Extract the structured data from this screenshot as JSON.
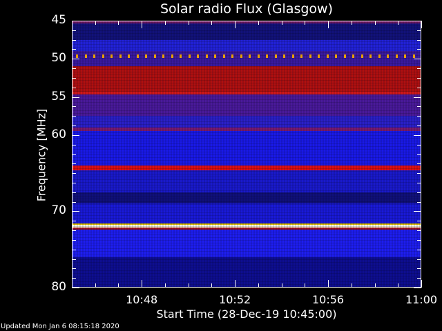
{
  "chart_data": {
    "type": "heatmap",
    "title": "Solar radio Flux (Glasgow)",
    "xlabel": "Start Time (28-Dec-19 10:45:00)",
    "ylabel": "Frequency [MHz]",
    "x_range": [
      "10:45",
      "11:00"
    ],
    "ylim": [
      45,
      80
    ],
    "y_inverted": true,
    "x_ticks": [
      "10:48",
      "10:52",
      "10:56",
      "11:00"
    ],
    "y_ticks": [
      45,
      50,
      55,
      60,
      70,
      80
    ],
    "y_minor_step": 1.25,
    "colormap": "blue-red-yellow-white",
    "bands": [
      {
        "from": 45.0,
        "to": 45.4,
        "color": "#7a1a6a"
      },
      {
        "from": 45.4,
        "to": 47.5,
        "color": "#12127a"
      },
      {
        "from": 47.5,
        "to": 49.0,
        "color": "#2222d8"
      },
      {
        "from": 49.0,
        "to": 51.0,
        "color": "#3a1aa0"
      },
      {
        "from": 51.0,
        "to": 54.3,
        "color": "#b01010"
      },
      {
        "from": 54.3,
        "to": 54.7,
        "color": "#d01818"
      },
      {
        "from": 54.7,
        "to": 57.5,
        "color": "#4a1a9a"
      },
      {
        "from": 57.5,
        "to": 59.0,
        "color": "#2a20c8"
      },
      {
        "from": 59.0,
        "to": 59.5,
        "color": "#7a1a70"
      },
      {
        "from": 59.5,
        "to": 64.0,
        "color": "#1a1ae8"
      },
      {
        "from": 64.0,
        "to": 64.6,
        "color": "#e01010"
      },
      {
        "from": 64.6,
        "to": 67.5,
        "color": "#1a1acc"
      },
      {
        "from": 67.5,
        "to": 69.0,
        "color": "#10107a"
      },
      {
        "from": 69.0,
        "to": 71.6,
        "color": "#1a1ad8"
      },
      {
        "from": 71.6,
        "to": 71.8,
        "color": "#e0c000"
      },
      {
        "from": 71.8,
        "to": 72.1,
        "color": "#ffffe0"
      },
      {
        "from": 72.1,
        "to": 72.4,
        "color": "#a01020"
      },
      {
        "from": 72.4,
        "to": 76.0,
        "color": "#1e1ef0"
      },
      {
        "from": 76.0,
        "to": 80.0,
        "color": "#0e0e90"
      }
    ],
    "interference_line_mhz": 49.6,
    "interference_color": "#e8a000"
  },
  "footer": {
    "updated": "Updated Mon Jan  6 08:15:18 2020"
  }
}
